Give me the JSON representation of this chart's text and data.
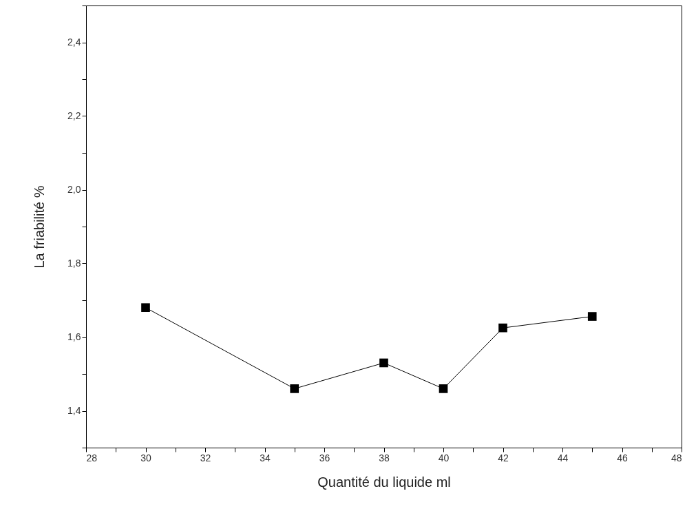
{
  "chart_data": {
    "type": "line",
    "xlabel": "Quantité du liquide ml",
    "ylabel": "La friabilité %",
    "x": [
      30,
      35,
      38,
      40,
      42,
      45
    ],
    "series": [
      {
        "color": "#000000",
        "values": [
          1.68,
          1.46,
          1.53,
          1.46,
          1.625,
          1.656
        ]
      }
    ],
    "xlim": [
      28,
      48
    ],
    "ylim": [
      1.3,
      2.5
    ],
    "xticks": [
      28,
      {
        "value": 29,
        "label": null
      },
      30,
      {
        "value": 31,
        "label": null
      },
      32,
      {
        "value": 33,
        "label": null
      },
      34,
      {
        "value": 35,
        "label": null
      },
      36,
      {
        "value": 37,
        "label": null
      },
      38,
      {
        "value": 39,
        "label": null
      },
      40,
      {
        "value": 41,
        "label": null
      },
      42,
      {
        "value": 43,
        "label": null
      },
      44,
      {
        "value": 45,
        "label": null
      },
      46,
      {
        "value": 47,
        "label": null
      },
      48
    ],
    "yticks": [
      {
        "value": 1.3,
        "label": null
      },
      {
        "value": 1.4,
        "label": "1,4"
      },
      {
        "value": 1.5,
        "label": null
      },
      {
        "value": 1.6,
        "label": "1,6"
      },
      {
        "value": 1.7,
        "label": null
      },
      {
        "value": 1.8,
        "label": "1,8"
      },
      {
        "value": 1.9,
        "label": null
      },
      {
        "value": 2.0,
        "label": "2,0"
      },
      {
        "value": 2.1,
        "label": null
      },
      {
        "value": 2.2,
        "label": "2,2"
      },
      {
        "value": 2.3,
        "label": null
      },
      {
        "value": 2.4,
        "label": "2,4"
      },
      {
        "value": 2.5,
        "label": null
      }
    ],
    "grid": false,
    "marker": "square",
    "line_style": "solid"
  }
}
